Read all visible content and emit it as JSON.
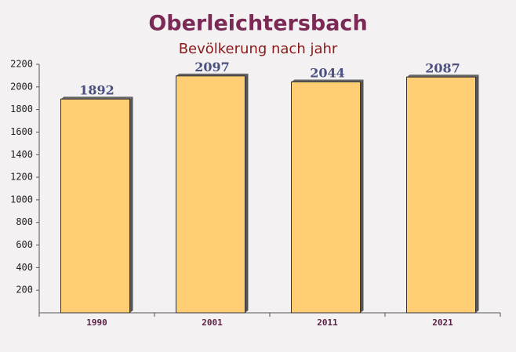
{
  "chart_data": {
    "type": "bar",
    "title": "Oberleichtersbach",
    "subtitle": "Bevölkerung nach jahr",
    "categories": [
      "1990",
      "2001",
      "2011",
      "2021"
    ],
    "values": [
      1892,
      2097,
      2044,
      2087
    ],
    "color": "#ffc966",
    "ylim": [
      0,
      2200
    ],
    "yticks": [
      200,
      400,
      600,
      800,
      1000,
      1200,
      1400,
      1600,
      1800,
      2000,
      2200
    ]
  }
}
